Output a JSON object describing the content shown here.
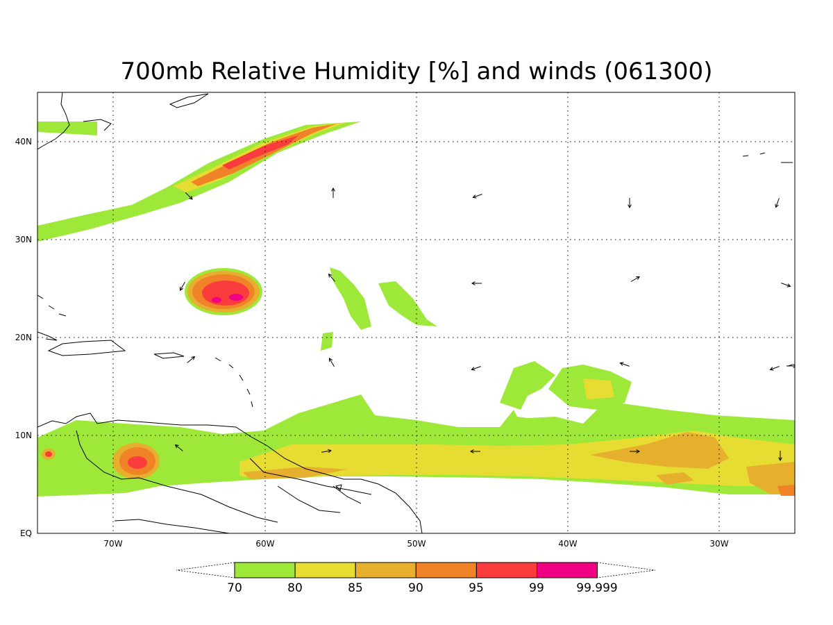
{
  "title": "700mb Relative Humidity [%] and winds (061300)",
  "lon_ticks": [
    "70W",
    "60W",
    "50W",
    "40W",
    "30W"
  ],
  "lat_ticks": [
    "EQ",
    "10N",
    "20N",
    "30N",
    "40N"
  ],
  "colorbar": {
    "labels": [
      "70",
      "80",
      "85",
      "90",
      "95",
      "99",
      "99.999"
    ],
    "colors": [
      "#9ee83a",
      "#e6dc32",
      "#e6af2d",
      "#f08228",
      "#fa3c3c",
      "#f00082"
    ]
  },
  "map_extent": {
    "lon": [
      -75,
      -25
    ],
    "lat": [
      0,
      45
    ]
  },
  "grid": true
}
